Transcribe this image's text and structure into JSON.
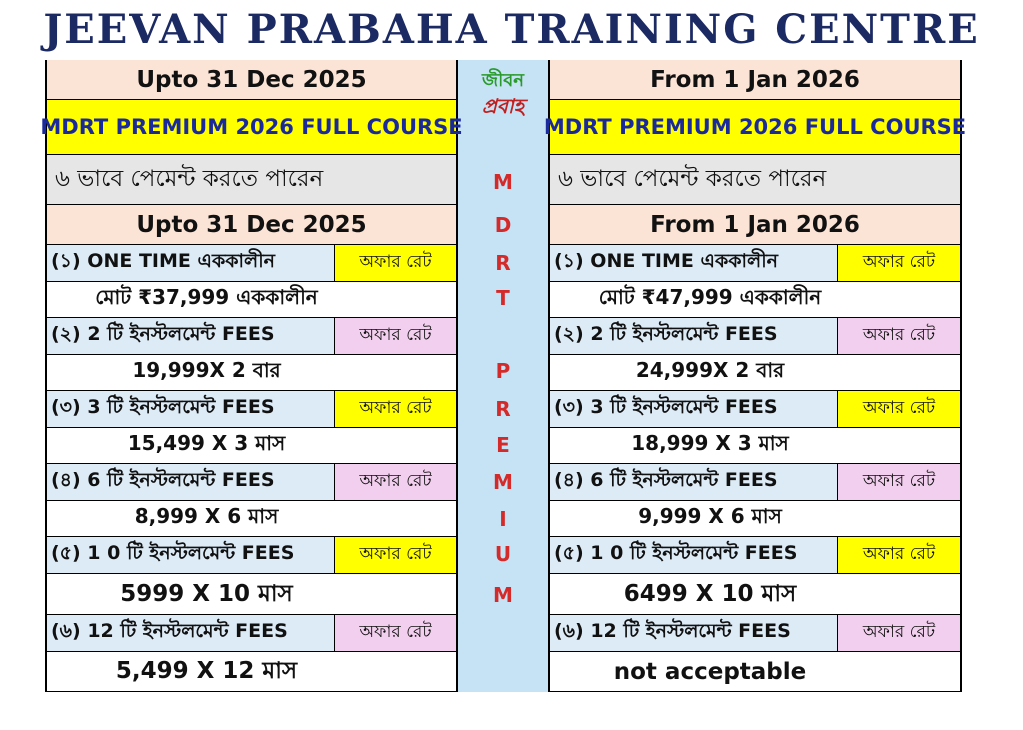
{
  "header": {
    "title": "JEEVAN PRABAHA TRAINING CENTRE"
  },
  "logo": {
    "line1": "জীবন",
    "line2": "প্রবাহ"
  },
  "side_text": [
    "M",
    "D",
    "R",
    "T",
    "P",
    "R",
    "E",
    "M",
    "I",
    "U",
    "M"
  ],
  "columns": [
    {
      "period": "Upto 31 Dec 2025",
      "course": "MDRT PREMIUM 2026 FULL COURSE",
      "payment_note": "৬ ভাবে পেমেন্ট করতে পারেন",
      "period_repeat": "Upto 31 Dec 2025",
      "options": [
        {
          "label": "(১) ONE TIME এককালীন",
          "badge": "অফার রেট",
          "amount": "মোট  ₹37,999 এককালীন"
        },
        {
          "label": "(২) 2 টি ইনস্টলমেন্ট  FEES",
          "badge": "অফার রেট",
          "amount": "19,999X 2 বার"
        },
        {
          "label": "(৩) 3 টি ইনস্টলমেন্ট  FEES",
          "badge": "অফার রেট",
          "amount": "15,499 X 3 মাস"
        },
        {
          "label": "(৪) 6 টি ইনস্টলমেন্ট  FEES",
          "badge": "অফার রেট",
          "amount": "8,999 X 6 মাস"
        },
        {
          "label": "(৫) 1 0 টি ইনস্টলমেন্ট  FEES",
          "badge": "অফার রেট",
          "amount": "5999 X 10 মাস"
        },
        {
          "label": "(৬) 12 টি ইনস্টলমেন্ট  FEES",
          "badge": "অফার রেট",
          "amount": "5,499 X 12 মাস"
        }
      ]
    },
    {
      "period": "From 1 Jan 2026",
      "course": "MDRT PREMIUM 2026 FULL COURSE",
      "payment_note": "৬ ভাবে পেমেন্ট করতে পারেন",
      "period_repeat": "From 1 Jan 2026",
      "options": [
        {
          "label": "(১) ONE TIME এককালীন",
          "badge": "অফার রেট",
          "amount": "মোট  ₹47,999 এককালীন"
        },
        {
          "label": "(২) 2 টি ইনস্টলমেন্ট  FEES",
          "badge": "অফার রেট",
          "amount": "24,999X 2 বার"
        },
        {
          "label": "(৩) 3 টি ইনস্টলমেন্ট  FEES",
          "badge": "অফার রেট",
          "amount": "18,999 X 3 মাস"
        },
        {
          "label": "(৪) 6 টি ইনস্টলমেন্ট  FEES",
          "badge": "অফার রেট",
          "amount": "9,999 X 6 মাস"
        },
        {
          "label": "(৫) 1 0 টি ইনস্টলমেন্ট  FEES",
          "badge": "অফার রেট",
          "amount": "6499 X 10 মাস"
        },
        {
          "label": "(৬) 12 টি ইনস্টলমেন্ট  FEES",
          "badge": "অফার রেট",
          "amount": "not acceptable"
        }
      ]
    }
  ]
}
